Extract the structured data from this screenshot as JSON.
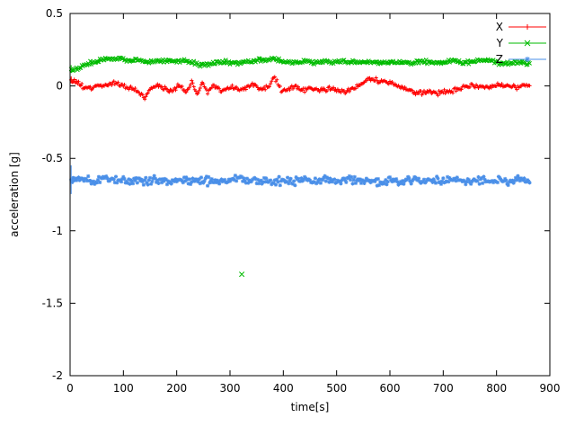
{
  "chart_data": {
    "type": "scatter",
    "title": "",
    "xlabel": "time[s]",
    "ylabel": "acceleration [g]",
    "xlim": [
      0,
      900
    ],
    "ylim": [
      -2,
      0.5
    ],
    "grid": false,
    "legend_position": "top-right",
    "xticks": {
      "values": [
        0,
        100,
        200,
        300,
        400,
        500,
        600,
        700,
        800,
        900
      ],
      "labels": [
        "0",
        "100",
        "200",
        "300",
        "400",
        "500",
        "600",
        "700",
        "800",
        "900"
      ]
    },
    "yticks": {
      "values": [
        0.5,
        0,
        -0.5,
        -1,
        -1.5,
        -2
      ],
      "labels": [
        "0.5",
        "0",
        "-0.5",
        "-1",
        "-1.5",
        "-2"
      ]
    },
    "legend": [
      {
        "label": "X",
        "color": "#ff0000"
      },
      {
        "label": "Y",
        "color": "#00bb00"
      },
      {
        "label": "Z",
        "color": "#4a8fe8"
      }
    ],
    "series": [
      {
        "name": "X",
        "color": "#ff0000",
        "marker": "plus",
        "style": "errorbars",
        "x_range": [
          2,
          862
        ],
        "step": 2,
        "noise": 0.012,
        "err": 0.018,
        "control": [
          [
            0,
            0.05
          ],
          [
            10,
            0.03
          ],
          [
            25,
            -0.01
          ],
          [
            40,
            -0.02
          ],
          [
            55,
            0.0
          ],
          [
            70,
            0.01
          ],
          [
            85,
            0.02
          ],
          [
            100,
            0.0
          ],
          [
            115,
            -0.02
          ],
          [
            130,
            -0.05
          ],
          [
            140,
            -0.09
          ],
          [
            148,
            -0.03
          ],
          [
            160,
            0.0
          ],
          [
            175,
            -0.01
          ],
          [
            190,
            -0.04
          ],
          [
            205,
            0.01
          ],
          [
            218,
            -0.05
          ],
          [
            228,
            0.04
          ],
          [
            238,
            -0.06
          ],
          [
            248,
            0.03
          ],
          [
            258,
            -0.04
          ],
          [
            270,
            0.0
          ],
          [
            285,
            -0.03
          ],
          [
            300,
            -0.01
          ],
          [
            315,
            -0.02
          ],
          [
            330,
            -0.01
          ],
          [
            345,
            0.01
          ],
          [
            360,
            -0.02
          ],
          [
            372,
            0.0
          ],
          [
            383,
            0.06
          ],
          [
            390,
            0.02
          ],
          [
            398,
            -0.04
          ],
          [
            410,
            -0.02
          ],
          [
            425,
            -0.01
          ],
          [
            440,
            -0.03
          ],
          [
            455,
            -0.02
          ],
          [
            470,
            -0.03
          ],
          [
            485,
            -0.02
          ],
          [
            500,
            -0.03
          ],
          [
            515,
            -0.04
          ],
          [
            530,
            -0.02
          ],
          [
            545,
            0.01
          ],
          [
            558,
            0.05
          ],
          [
            572,
            0.04
          ],
          [
            586,
            0.03
          ],
          [
            600,
            0.02
          ],
          [
            615,
            0.0
          ],
          [
            630,
            -0.03
          ],
          [
            645,
            -0.05
          ],
          [
            660,
            -0.05
          ],
          [
            675,
            -0.04
          ],
          [
            690,
            -0.05
          ],
          [
            705,
            -0.04
          ],
          [
            720,
            -0.03
          ],
          [
            735,
            -0.01
          ],
          [
            750,
            0.0
          ],
          [
            765,
            0.0
          ],
          [
            780,
            -0.02
          ],
          [
            795,
            0.0
          ],
          [
            810,
            0.01
          ],
          [
            825,
            0.0
          ],
          [
            840,
            -0.01
          ],
          [
            860,
            0.0
          ]
        ],
        "spikes": [
          {
            "x": 140,
            "e": 0.06
          },
          {
            "x": 232,
            "e": 0.05
          },
          {
            "x": 392,
            "e": 0.05
          },
          {
            "x": 763,
            "e": 0.06
          },
          {
            "x": 800,
            "e": 0.05
          }
        ],
        "outliers": []
      },
      {
        "name": "Y",
        "color": "#00bb00",
        "marker": "cross",
        "style": "errorbars",
        "x_range": [
          2,
          862
        ],
        "step": 2,
        "noise": 0.01,
        "err": 0.02,
        "control": [
          [
            0,
            0.1
          ],
          [
            8,
            0.11
          ],
          [
            20,
            0.13
          ],
          [
            35,
            0.16
          ],
          [
            50,
            0.17
          ],
          [
            65,
            0.18
          ],
          [
            80,
            0.18
          ],
          [
            95,
            0.19
          ],
          [
            110,
            0.17
          ],
          [
            125,
            0.18
          ],
          [
            140,
            0.17
          ],
          [
            155,
            0.17
          ],
          [
            170,
            0.17
          ],
          [
            185,
            0.18
          ],
          [
            200,
            0.17
          ],
          [
            215,
            0.17
          ],
          [
            230,
            0.16
          ],
          [
            245,
            0.14
          ],
          [
            260,
            0.15
          ],
          [
            275,
            0.16
          ],
          [
            290,
            0.17
          ],
          [
            305,
            0.16
          ],
          [
            320,
            0.16
          ],
          [
            335,
            0.17
          ],
          [
            350,
            0.18
          ],
          [
            365,
            0.17
          ],
          [
            380,
            0.19
          ],
          [
            390,
            0.18
          ],
          [
            400,
            0.17
          ],
          [
            420,
            0.16
          ],
          [
            440,
            0.17
          ],
          [
            460,
            0.16
          ],
          [
            480,
            0.17
          ],
          [
            500,
            0.16
          ],
          [
            520,
            0.17
          ],
          [
            540,
            0.16
          ],
          [
            560,
            0.17
          ],
          [
            580,
            0.16
          ],
          [
            600,
            0.17
          ],
          [
            620,
            0.16
          ],
          [
            640,
            0.16
          ],
          [
            660,
            0.17
          ],
          [
            680,
            0.16
          ],
          [
            700,
            0.16
          ],
          [
            720,
            0.17
          ],
          [
            740,
            0.16
          ],
          [
            760,
            0.17
          ],
          [
            780,
            0.18
          ],
          [
            795,
            0.17
          ],
          [
            810,
            0.15
          ],
          [
            825,
            0.16
          ],
          [
            840,
            0.16
          ],
          [
            860,
            0.16
          ]
        ],
        "spikes": [
          {
            "x": 30,
            "e": 0.07
          },
          {
            "x": 86,
            "e": 0.13
          },
          {
            "x": 140,
            "e": 0.17
          },
          {
            "x": 238,
            "e": 0.08
          },
          {
            "x": 390,
            "e": 0.12
          },
          {
            "x": 800,
            "e": 0.06
          }
        ],
        "outliers": [
          {
            "x": 322,
            "y": -1.3,
            "e": 0.67
          }
        ]
      },
      {
        "name": "Z",
        "color": "#4a8fe8",
        "marker": "star",
        "style": "errorbars",
        "x_range": [
          2,
          862
        ],
        "step": 2,
        "noise": 0.022,
        "err": 0.05,
        "err_boost": {
          "before": 360,
          "scale": 1.3
        },
        "control": [
          [
            0,
            -0.66
          ],
          [
            20,
            -0.65
          ],
          [
            40,
            -0.66
          ],
          [
            60,
            -0.65
          ],
          [
            80,
            -0.64
          ],
          [
            100,
            -0.66
          ],
          [
            120,
            -0.65
          ],
          [
            140,
            -0.66
          ],
          [
            160,
            -0.65
          ],
          [
            180,
            -0.66
          ],
          [
            200,
            -0.65
          ],
          [
            220,
            -0.66
          ],
          [
            240,
            -0.65
          ],
          [
            260,
            -0.66
          ],
          [
            280,
            -0.65
          ],
          [
            300,
            -0.66
          ],
          [
            320,
            -0.64
          ],
          [
            340,
            -0.66
          ],
          [
            360,
            -0.65
          ],
          [
            380,
            -0.66
          ],
          [
            400,
            -0.65
          ],
          [
            420,
            -0.66
          ],
          [
            440,
            -0.65
          ],
          [
            460,
            -0.66
          ],
          [
            480,
            -0.65
          ],
          [
            500,
            -0.66
          ],
          [
            520,
            -0.65
          ],
          [
            540,
            -0.66
          ],
          [
            560,
            -0.65
          ],
          [
            580,
            -0.66
          ],
          [
            600,
            -0.65
          ],
          [
            620,
            -0.66
          ],
          [
            640,
            -0.65
          ],
          [
            660,
            -0.66
          ],
          [
            680,
            -0.65
          ],
          [
            700,
            -0.66
          ],
          [
            720,
            -0.65
          ],
          [
            740,
            -0.66
          ],
          [
            760,
            -0.65
          ],
          [
            780,
            -0.66
          ],
          [
            800,
            -0.65
          ],
          [
            820,
            -0.66
          ],
          [
            840,
            -0.65
          ],
          [
            860,
            -0.65
          ]
        ],
        "spikes": [
          {
            "x": 60,
            "e": 0.18
          },
          {
            "x": 86,
            "e": 0.3
          },
          {
            "x": 140,
            "e": 0.37
          },
          {
            "x": 175,
            "e": 0.18
          },
          {
            "x": 230,
            "e": 0.2
          },
          {
            "x": 260,
            "e": 0.17
          },
          {
            "x": 320,
            "e": 0.28
          },
          {
            "x": 338,
            "e": 0.3
          },
          {
            "x": 365,
            "e": 0.22
          },
          {
            "x": 420,
            "e": 0.15
          },
          {
            "x": 500,
            "e": 0.14
          },
          {
            "x": 600,
            "e": 0.12
          }
        ],
        "outliers": []
      }
    ]
  }
}
